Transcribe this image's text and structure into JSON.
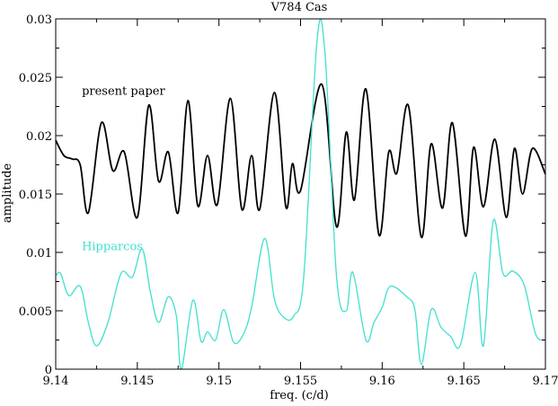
{
  "chart_data": {
    "type": "line",
    "title": "V784 Cas",
    "xlabel": "freq. (c/d)",
    "ylabel": "amplitude",
    "xlim": [
      9.14,
      9.17
    ],
    "ylim": [
      0,
      0.03
    ],
    "x_ticks": [
      9.14,
      9.145,
      9.15,
      9.155,
      9.16,
      9.165,
      9.17
    ],
    "x_tick_labels": [
      "9.14",
      "9.145",
      "9.15",
      "9.155",
      "9.16",
      "9.165",
      "9.17"
    ],
    "y_ticks": [
      0,
      0.005,
      0.01,
      0.015,
      0.02,
      0.025,
      0.03
    ],
    "y_tick_labels": [
      "0",
      "0.005",
      "0.01",
      "0.015",
      "0.02",
      "0.025",
      "0.03"
    ],
    "grid": false,
    "series": [
      {
        "name": "present paper",
        "color": "#000000",
        "points": [
          [
            9.14,
            0.0196
          ],
          [
            9.1405,
            0.0183
          ],
          [
            9.141,
            0.018
          ],
          [
            9.1415,
            0.0175
          ],
          [
            9.142,
            0.0134
          ],
          [
            9.1428,
            0.0211
          ],
          [
            9.1435,
            0.017
          ],
          [
            9.1442,
            0.0186
          ],
          [
            9.145,
            0.013
          ],
          [
            9.1457,
            0.0226
          ],
          [
            9.1463,
            0.0161
          ],
          [
            9.1469,
            0.0186
          ],
          [
            9.1475,
            0.0134
          ],
          [
            9.1481,
            0.023
          ],
          [
            9.1487,
            0.014
          ],
          [
            9.1493,
            0.0183
          ],
          [
            9.1499,
            0.0141
          ],
          [
            9.1507,
            0.0232
          ],
          [
            9.1514,
            0.0137
          ],
          [
            9.152,
            0.0183
          ],
          [
            9.1525,
            0.0137
          ],
          [
            9.1534,
            0.0237
          ],
          [
            9.1541,
            0.0139
          ],
          [
            9.1545,
            0.0176
          ],
          [
            9.155,
            0.0153
          ],
          [
            9.1563,
            0.0244
          ],
          [
            9.1572,
            0.0122
          ],
          [
            9.1578,
            0.0203
          ],
          [
            9.1583,
            0.0145
          ],
          [
            9.159,
            0.024
          ],
          [
            9.1598,
            0.0115
          ],
          [
            9.1604,
            0.0186
          ],
          [
            9.1609,
            0.0168
          ],
          [
            9.1616,
            0.0226
          ],
          [
            9.1624,
            0.0113
          ],
          [
            9.163,
            0.0193
          ],
          [
            9.1637,
            0.0138
          ],
          [
            9.1643,
            0.0211
          ],
          [
            9.1651,
            0.0114
          ],
          [
            9.1656,
            0.019
          ],
          [
            9.1662,
            0.0139
          ],
          [
            9.1669,
            0.0197
          ],
          [
            9.1676,
            0.013
          ],
          [
            9.1681,
            0.0189
          ],
          [
            9.1686,
            0.015
          ],
          [
            9.1692,
            0.0189
          ],
          [
            9.17,
            0.0167
          ]
        ]
      },
      {
        "name": "Hipparcos",
        "color": "#40e0d0",
        "points": [
          [
            9.14,
            0.008
          ],
          [
            9.1403,
            0.0082
          ],
          [
            9.1408,
            0.0063
          ],
          [
            9.1415,
            0.0071
          ],
          [
            9.142,
            0.004
          ],
          [
            9.1425,
            0.002
          ],
          [
            9.1432,
            0.004
          ],
          [
            9.144,
            0.0082
          ],
          [
            9.1447,
            0.0079
          ],
          [
            9.1453,
            0.0103
          ],
          [
            9.1458,
            0.0066
          ],
          [
            9.1463,
            0.004
          ],
          [
            9.1469,
            0.0062
          ],
          [
            9.1474,
            0.0045
          ],
          [
            9.1477,
            0.0
          ],
          [
            9.1484,
            0.0059
          ],
          [
            9.1489,
            0.0024
          ],
          [
            9.1493,
            0.0032
          ],
          [
            9.1498,
            0.0025
          ],
          [
            9.1503,
            0.0051
          ],
          [
            9.1509,
            0.0023
          ],
          [
            9.1515,
            0.003
          ],
          [
            9.152,
            0.0053
          ],
          [
            9.1528,
            0.0112
          ],
          [
            9.1534,
            0.006
          ],
          [
            9.154,
            0.0044
          ],
          [
            9.1546,
            0.0046
          ],
          [
            9.1552,
            0.008
          ],
          [
            9.156,
            0.028
          ],
          [
            9.1565,
            0.027
          ],
          [
            9.1572,
            0.008
          ],
          [
            9.1578,
            0.005
          ],
          [
            9.1582,
            0.0083
          ],
          [
            9.159,
            0.0025
          ],
          [
            9.1595,
            0.004
          ],
          [
            9.16,
            0.0053
          ],
          [
            9.1605,
            0.0071
          ],
          [
            9.1615,
            0.0062
          ],
          [
            9.162,
            0.0051
          ],
          [
            9.1624,
            0.0004
          ],
          [
            9.163,
            0.0051
          ],
          [
            9.1636,
            0.0036
          ],
          [
            9.1642,
            0.0028
          ],
          [
            9.1648,
            0.0021
          ],
          [
            9.1657,
            0.0083
          ],
          [
            9.1662,
            0.002
          ],
          [
            9.1668,
            0.0127
          ],
          [
            9.1674,
            0.0082
          ],
          [
            9.168,
            0.0084
          ],
          [
            9.1687,
            0.0072
          ],
          [
            9.1694,
            0.003
          ],
          [
            9.17,
            0.0025
          ]
        ]
      }
    ],
    "annotations": [
      {
        "text": "present paper",
        "x": 9.1416,
        "y": 0.0235,
        "color": "#000000"
      },
      {
        "text": "Hipparcos",
        "x": 9.1416,
        "y": 0.0102,
        "color": "#40e0d0"
      }
    ]
  }
}
